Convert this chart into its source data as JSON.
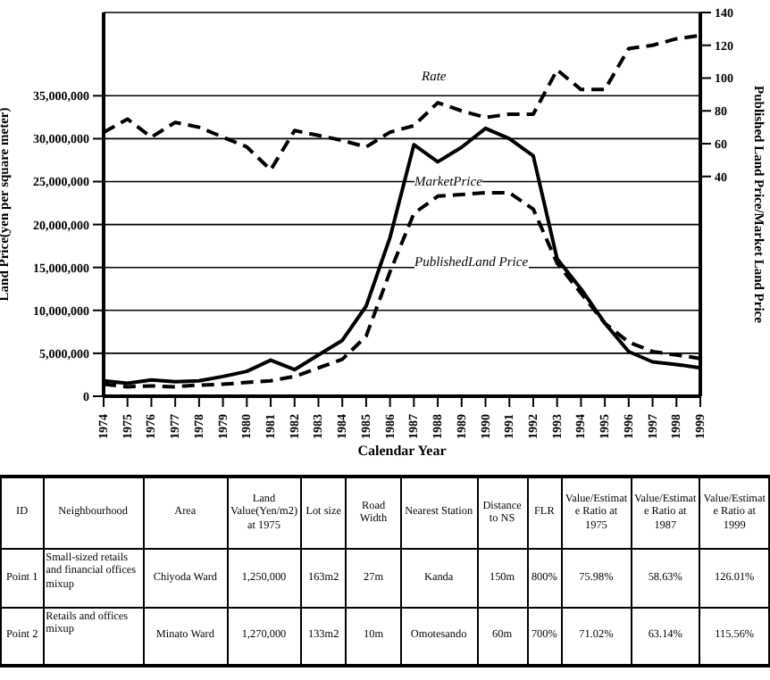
{
  "chart_data": [
    {
      "type": "line",
      "xlabel": "Calendar Year",
      "ylabel": "Land Price(yen per square meter)",
      "y2label": "Published Land Price/Market Land Price",
      "categories": [
        "1974",
        "1975",
        "1976",
        "1977",
        "1978",
        "1979",
        "1980",
        "1981",
        "1982",
        "1983",
        "1984",
        "1985",
        "1986",
        "1987",
        "1988",
        "1989",
        "1990",
        "1991",
        "1992",
        "1993",
        "1994",
        "1995",
        "1996",
        "1997",
        "1998",
        "1999"
      ],
      "series": [
        {
          "name": "MarketPrice",
          "color": "#000000",
          "line_style": "solid",
          "values": [
            1800000,
            1500000,
            1900000,
            1700000,
            1800000,
            2300000,
            2900000,
            4200000,
            3100000,
            4800000,
            6500000,
            10500000,
            18500000,
            29300000,
            27300000,
            29000000,
            31200000,
            30000000,
            28000000,
            16000000,
            12500000,
            8500000,
            5200000,
            4000000,
            3700000,
            3300000
          ]
        },
        {
          "name": "PublishedLand Price",
          "color": "#000000",
          "line_style": "dashed",
          "values": [
            1400000,
            1100000,
            1200000,
            1100000,
            1300000,
            1400000,
            1600000,
            1800000,
            2300000,
            3300000,
            4300000,
            7000000,
            14500000,
            21300000,
            23300000,
            23500000,
            23700000,
            23700000,
            21800000,
            15500000,
            12000000,
            8500000,
            6300000,
            5200000,
            4800000,
            4400000
          ]
        },
        {
          "name": "Rate",
          "color": "#000000",
          "line_style": "dashed",
          "axis": "y2",
          "values": [
            67,
            75,
            64,
            73,
            70,
            64,
            58,
            44,
            68,
            65,
            62,
            58,
            67,
            71,
            85,
            80,
            76,
            78,
            78,
            105,
            93,
            93,
            118,
            120,
            124,
            126
          ]
        }
      ],
      "ylim": [
        0,
        44700000
      ],
      "yticks": [
        0,
        {
          "value": 5000000,
          "label": "5,000,000"
        },
        {
          "value": 10000000,
          "label": "10,000,000"
        },
        {
          "value": 15000000,
          "label": "15,000,000"
        },
        {
          "value": 20000000,
          "label": "20,000,000"
        },
        {
          "value": 25000000,
          "label": "25,000,000"
        },
        {
          "value": 30000000,
          "label": "30,000,000"
        },
        {
          "value": 35000000,
          "label": "35,000,000"
        }
      ],
      "y2lim": [
        -94,
        140
      ],
      "y2ticks": [
        40,
        60,
        80,
        100,
        120,
        140
      ],
      "grid": "y",
      "marker": "none"
    },
    {
      "type": "other",
      "categories": [
        "ID",
        "Neighbourhood",
        "Area",
        "Land Value(Yen/m2) at 1975",
        "Lot size",
        "Road Width",
        "Nearest Station",
        "Distance to NS",
        "FLR",
        "Value/Estimate Ratio at 1975",
        "Value/Estimate Ratio at 1987",
        "Value/Estimate Ratio at 1999"
      ],
      "cell_labels": [
        [
          "Point 1",
          "Small-sized retails and financial offices mixup",
          "Chiyoda Ward",
          "1,250,000",
          "163m2",
          "27m",
          "Kanda",
          "150m",
          "800%",
          "75.98%",
          "58.63%",
          "126.01%"
        ],
        [
          "Point 2",
          "Retails and offices mixup",
          "Minato Ward",
          "1,270,000",
          "133m2",
          "10m",
          "Omotesando",
          "60m",
          "700%",
          "71.02%",
          "63.14%",
          "115.56%"
        ]
      ]
    }
  ]
}
